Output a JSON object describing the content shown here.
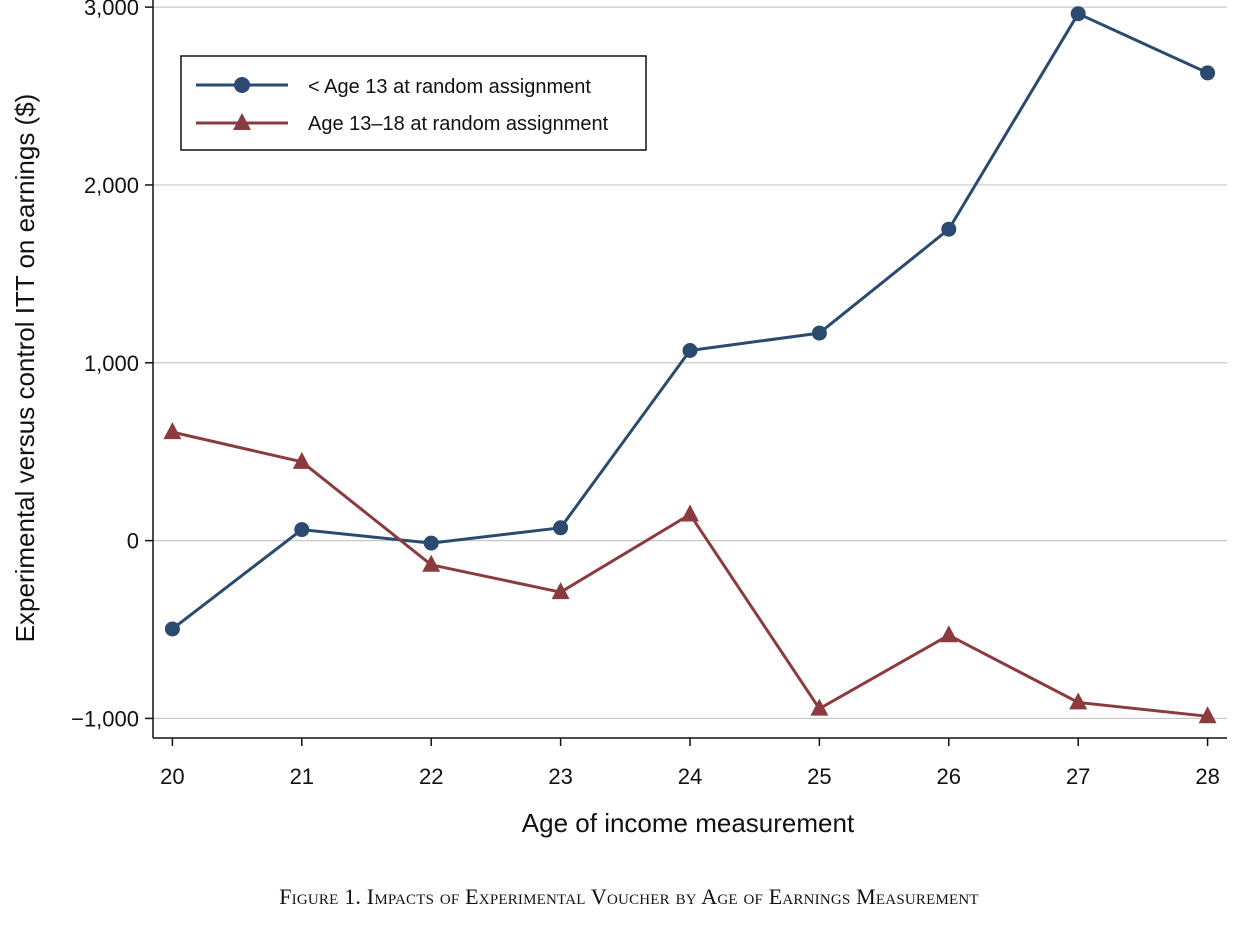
{
  "chart_data": {
    "type": "line",
    "title": "",
    "caption": "Figure 1. Impacts of Experimental Voucher by Age of Earnings Measurement",
    "xlabel": "Age of income measurement",
    "ylabel": "Experimental versus control ITT on earnings ($)",
    "x": [
      20,
      21,
      22,
      23,
      24,
      25,
      26,
      27,
      28
    ],
    "x_tick_labels": [
      "20",
      "21",
      "22",
      "23",
      "24",
      "25",
      "26",
      "27",
      "28"
    ],
    "y_ticks": [
      -1000,
      0,
      1000,
      2000,
      3000
    ],
    "y_tick_labels": [
      "−1,000",
      "0",
      "1,000",
      "2,000",
      "3,000"
    ],
    "ylim": [
      -1110,
      3040
    ],
    "xlim": [
      19.85,
      28.15
    ],
    "grid": "horizontal",
    "legend_position": "top-left",
    "series": [
      {
        "name": "< Age 13 at random assignment",
        "color": "#2b4a6f",
        "marker": "circle",
        "values": [
          -497,
          62,
          -14,
          72,
          1069,
          1167,
          1751,
          2963,
          2630
        ]
      },
      {
        "name": "Age 13–18 at random assignment",
        "color": "#8b3b3e",
        "marker": "triangle",
        "values": [
          610,
          443,
          -136,
          -290,
          147,
          -945,
          -532,
          -910,
          -988
        ]
      }
    ]
  }
}
